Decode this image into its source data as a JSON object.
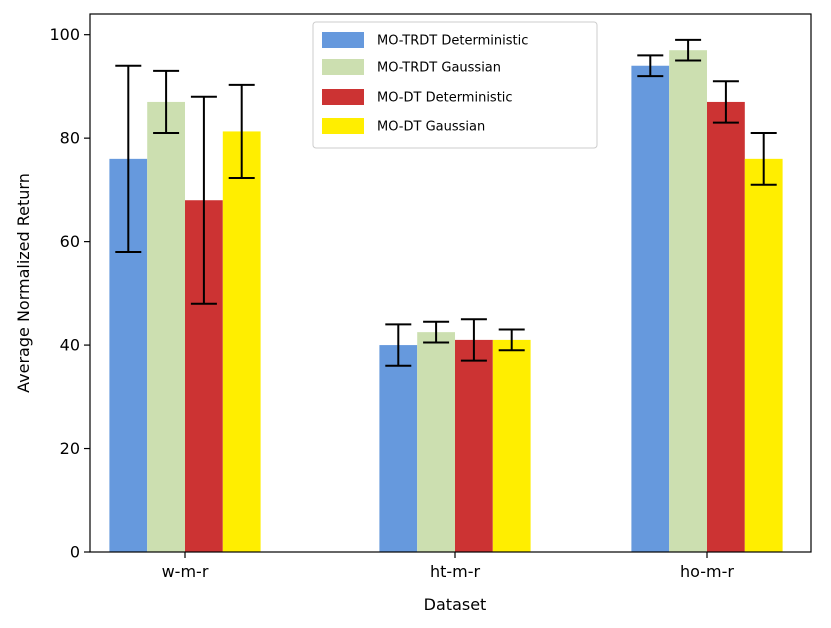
{
  "chart_data": {
    "type": "bar",
    "xlabel": "Dataset",
    "ylabel": "Average Normalized Return",
    "ylim": [
      0,
      104
    ],
    "yticks": [
      0,
      20,
      40,
      60,
      80,
      100
    ],
    "categories": [
      "w-m-r",
      "ht-m-r",
      "ho-m-r"
    ],
    "legend_position": "top-center",
    "series": [
      {
        "name": "MO-TRDT Deterministic",
        "color": "#6699dd",
        "values": [
          76,
          40,
          94
        ],
        "err_low": [
          58,
          36,
          92
        ],
        "err_high": [
          94,
          44,
          96
        ]
      },
      {
        "name": "MO-TRDT Gaussian",
        "color": "#ccdfb0",
        "values": [
          87,
          42.5,
          97
        ],
        "err_low": [
          81,
          40.5,
          95
        ],
        "err_high": [
          93,
          44.5,
          99
        ]
      },
      {
        "name": "MO-DT Deterministic",
        "color": "#cc3333",
        "values": [
          68,
          41,
          87
        ],
        "err_low": [
          48,
          37,
          83
        ],
        "err_high": [
          88,
          45,
          91
        ]
      },
      {
        "name": "MO-DT Gaussian",
        "color": "#ffee00",
        "values": [
          81.3,
          41,
          76
        ],
        "err_low": [
          72.3,
          39,
          71
        ],
        "err_high": [
          90.3,
          43,
          81
        ]
      }
    ]
  }
}
